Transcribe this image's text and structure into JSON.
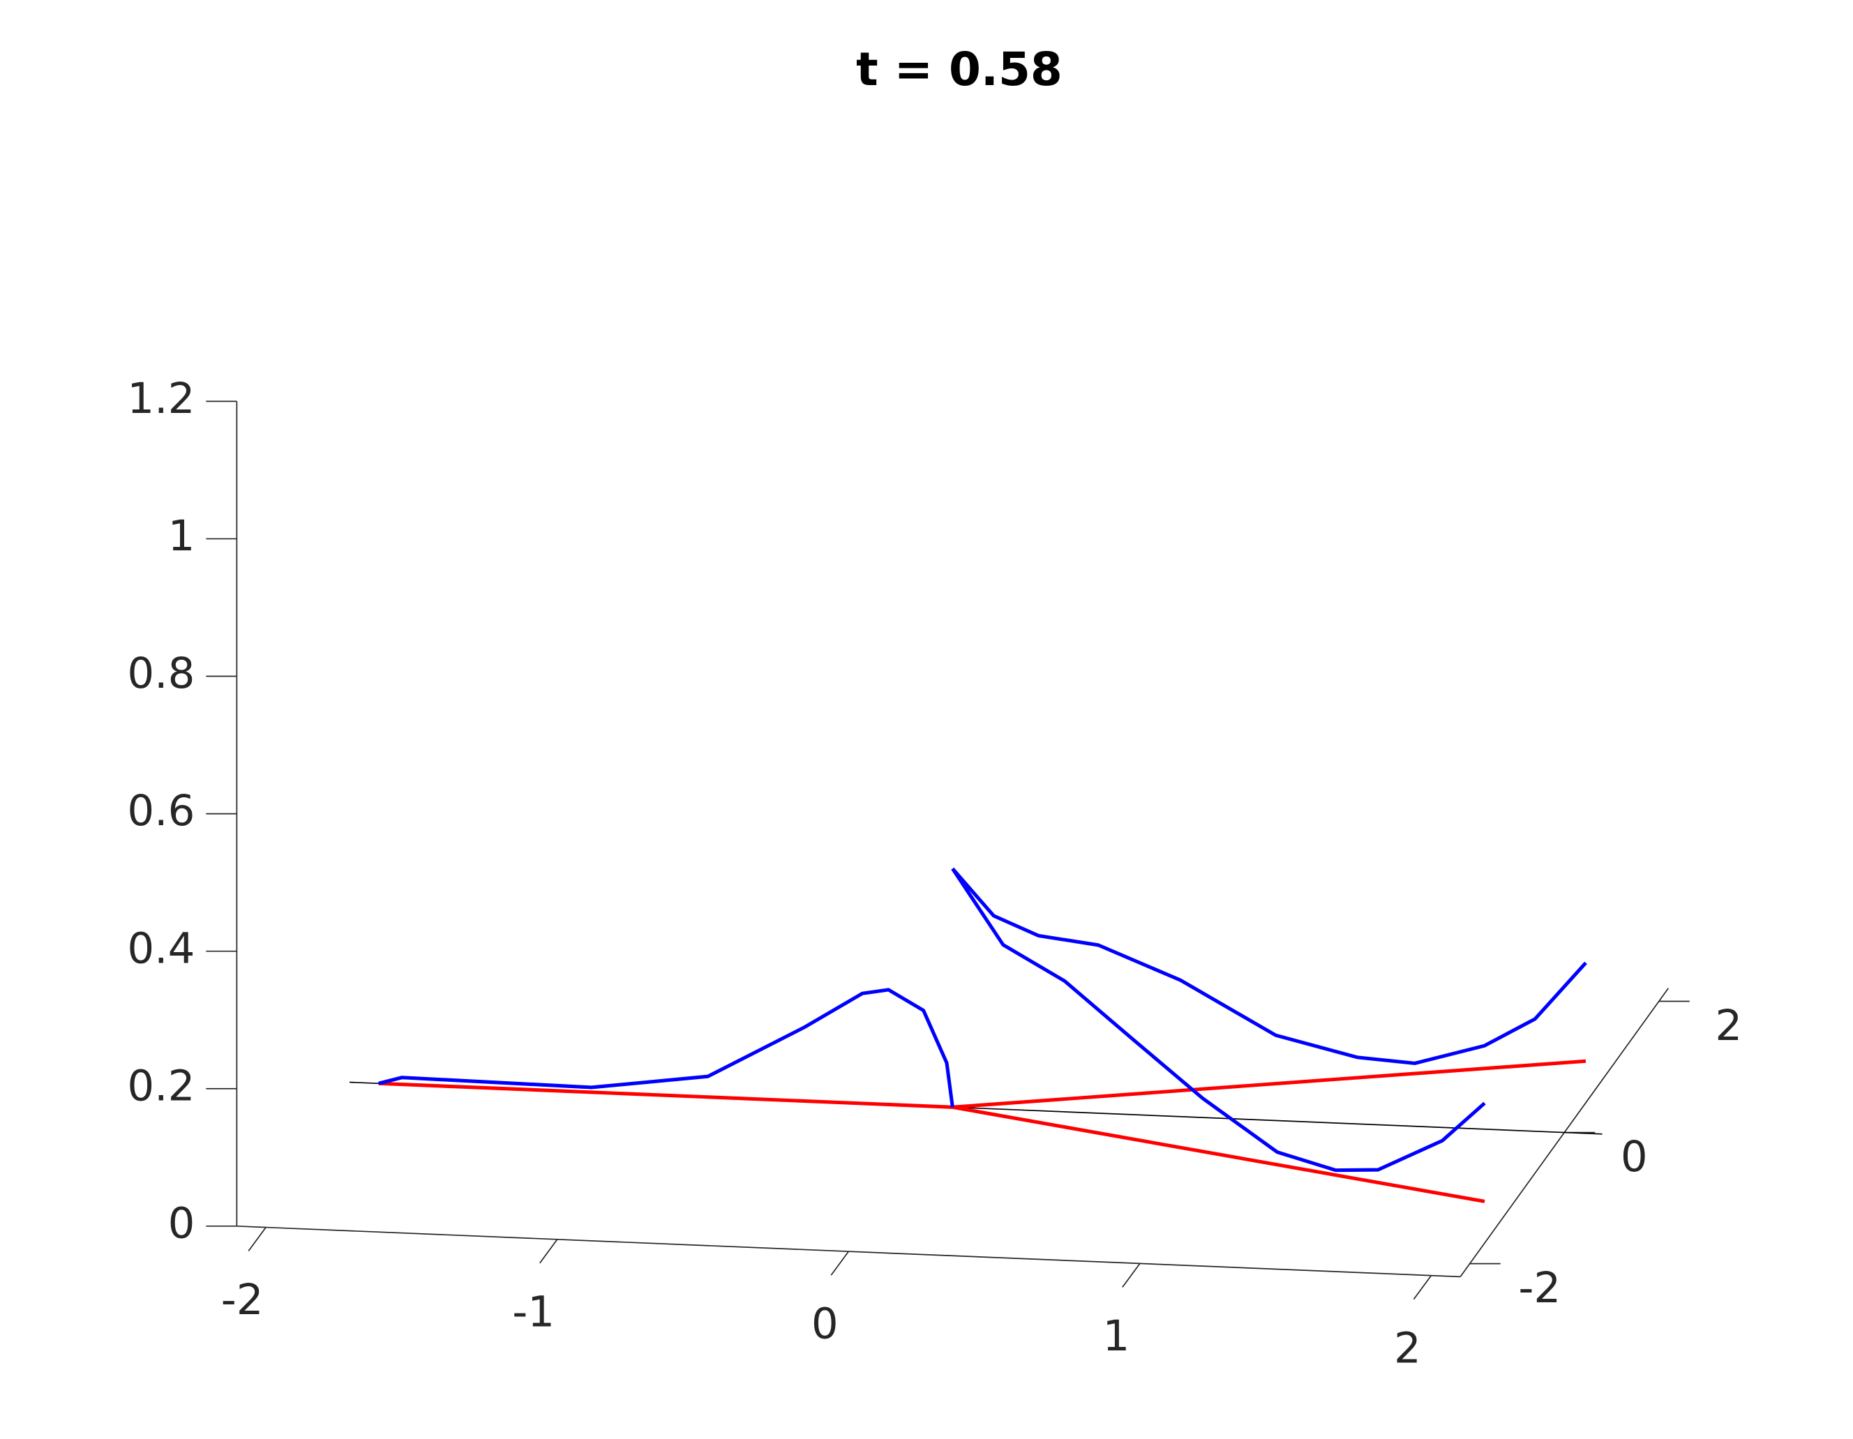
{
  "chart_data": {
    "type": "line3d",
    "title": "t = 0.58",
    "xlim": [
      -2.1,
      2.1
    ],
    "ylim": [
      -2.2,
      2.2
    ],
    "zlim": [
      0,
      1.2
    ],
    "xticks": [
      -2,
      -1,
      0,
      1,
      2
    ],
    "yticks": [
      -2,
      0,
      2
    ],
    "zticks": [
      0,
      0.2,
      0.4,
      0.6,
      0.8,
      1,
      1.2
    ],
    "series": [
      {
        "color": "#000000",
        "width": 1,
        "x": [
          -2.07,
          2.23
        ],
        "y": [
          0,
          0
        ],
        "z": [
          0,
          0
        ]
      },
      {
        "color": "#ff0000",
        "width": 3,
        "x": [
          0,
          -1.97
        ],
        "y": [
          0,
          0
        ],
        "z": [
          0,
          0
        ]
      },
      {
        "color": "#ff0000",
        "width": 3,
        "x": [
          0,
          2
        ],
        "y": [
          0,
          1.07
        ],
        "z": [
          0,
          0
        ]
      },
      {
        "color": "#ff0000",
        "width": 3,
        "x": [
          0,
          2
        ],
        "y": [
          0,
          -1.07
        ],
        "z": [
          0,
          0
        ]
      },
      {
        "color": "#0000ff",
        "width": 3,
        "x": [
          -1.97,
          -1.89,
          -1.24,
          -0.84,
          -0.51,
          -0.31,
          -0.22,
          -0.1,
          -0.02,
          0
        ],
        "y": [
          0,
          0,
          0,
          0,
          0,
          0,
          0,
          0,
          0,
          0
        ],
        "z": [
          0,
          0.01,
          0.007,
          0.03,
          0.107,
          0.16,
          0.167,
          0.139,
          0.064,
          0
        ]
      },
      {
        "color": "#0000ff",
        "width": 3,
        "x": [
          0,
          0.13,
          0.27,
          0.46,
          0.72,
          1.02,
          1.28,
          1.46,
          1.68,
          1.84,
          2
        ],
        "y": [
          0,
          0.07,
          0.15,
          0.25,
          0.39,
          0.55,
          0.68,
          0.78,
          0.9,
          0.98,
          1.07
        ],
        "z": [
          0.347,
          0.274,
          0.24,
          0.22,
          0.16,
          0.07,
          0.03,
          0.015,
          0.033,
          0.067,
          0.143
        ]
      },
      {
        "color": "#0000ff",
        "width": 3,
        "x": [
          0,
          0.19,
          0.42,
          0.68,
          0.94,
          1.22,
          1.44,
          1.6,
          1.84,
          2
        ],
        "y": [
          0,
          -0.1,
          -0.22,
          -0.36,
          -0.5,
          -0.65,
          -0.77,
          -0.86,
          -0.98,
          -1.07
        ],
        "z": [
          0.347,
          0.249,
          0.212,
          0.144,
          0.077,
          0.018,
          0.007,
          0.019,
          0.077,
          0.143
        ]
      }
    ]
  }
}
